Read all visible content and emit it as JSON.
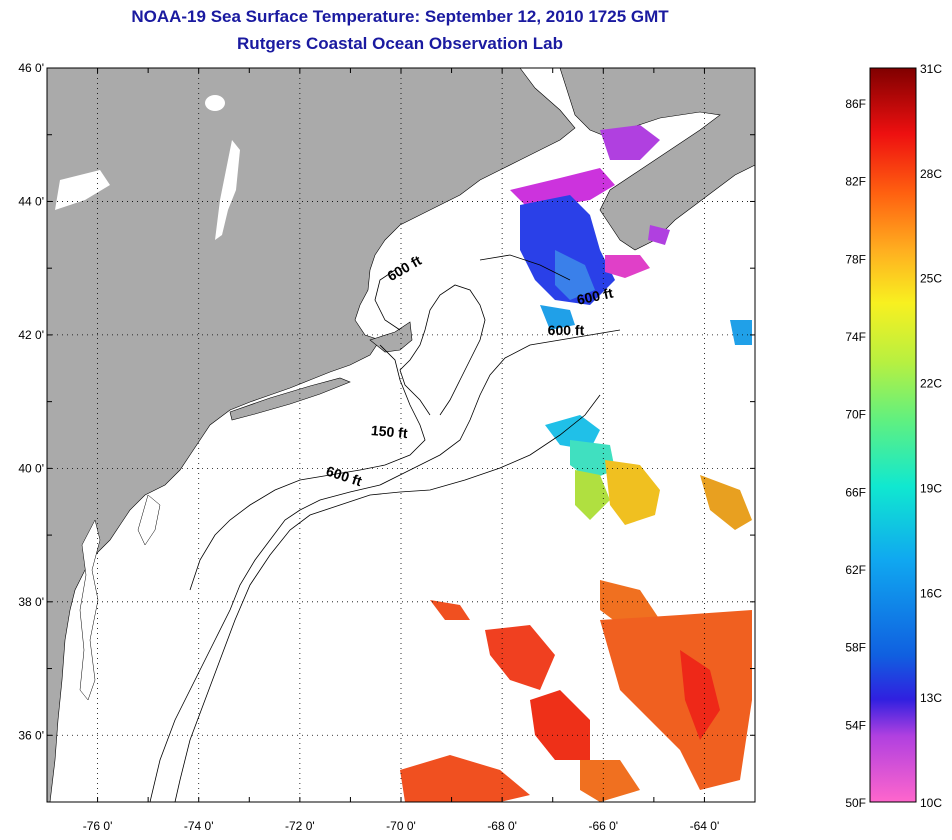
{
  "title": {
    "line1": "NOAA-19 Sea Surface Temperature:  September 12, 2010 1725 GMT",
    "line2": "Rutgers Coastal Ocean Observation Lab"
  },
  "map": {
    "lon_range": [
      -77,
      -63
    ],
    "lat_range": [
      35,
      46
    ],
    "lon_ticks": [
      {
        "value": -76,
        "label": "-76 0'"
      },
      {
        "value": -74,
        "label": "-74 0'"
      },
      {
        "value": -72,
        "label": "-72 0'"
      },
      {
        "value": -70,
        "label": "-70 0'"
      },
      {
        "value": -68,
        "label": "-68 0'"
      },
      {
        "value": -66,
        "label": "-66 0'"
      },
      {
        "value": -64,
        "label": "-64 0'"
      }
    ],
    "lat_ticks": [
      {
        "value": 46,
        "label": "46 0'"
      },
      {
        "value": 44,
        "label": "44 0'"
      },
      {
        "value": 42,
        "label": "42 0'"
      },
      {
        "value": 40,
        "label": "40 0'"
      },
      {
        "value": 38,
        "label": "38 0'"
      },
      {
        "value": 36,
        "label": "36 0'"
      }
    ],
    "land_color": "#aaaaaa",
    "contour_labels": [
      {
        "text": "600 ft",
        "lon": -70.2,
        "lat": 42.8,
        "rotate": 30
      },
      {
        "text": "600 ft",
        "lon": -66.5,
        "lat": 42.45,
        "rotate": 12
      },
      {
        "text": "600 ft",
        "lon": -67.1,
        "lat": 42.0,
        "rotate": 0
      },
      {
        "text": "150 ft",
        "lon": -70.6,
        "lat": 40.5,
        "rotate": -5
      },
      {
        "text": "600 ft",
        "lon": -71.5,
        "lat": 39.9,
        "rotate": -18
      }
    ]
  },
  "colorbar": {
    "fahrenheit_labels": [
      {
        "value": 86,
        "label": "86F"
      },
      {
        "value": 82,
        "label": "82F"
      },
      {
        "value": 78,
        "label": "78F"
      },
      {
        "value": 74,
        "label": "74F"
      },
      {
        "value": 70,
        "label": "70F"
      },
      {
        "value": 66,
        "label": "66F"
      },
      {
        "value": 62,
        "label": "62F"
      },
      {
        "value": 58,
        "label": "58F"
      },
      {
        "value": 54,
        "label": "54F"
      },
      {
        "value": 50,
        "label": "50F"
      }
    ],
    "celsius_labels": [
      {
        "value": 31,
        "label": "31C"
      },
      {
        "value": 28,
        "label": "28C"
      },
      {
        "value": 25,
        "label": "25C"
      },
      {
        "value": 22,
        "label": "22C"
      },
      {
        "value": 19,
        "label": "19C"
      },
      {
        "value": 16,
        "label": "16C"
      },
      {
        "value": 13,
        "label": "13C"
      },
      {
        "value": 10,
        "label": "10C"
      }
    ],
    "range_celsius": [
      10,
      31
    ]
  }
}
